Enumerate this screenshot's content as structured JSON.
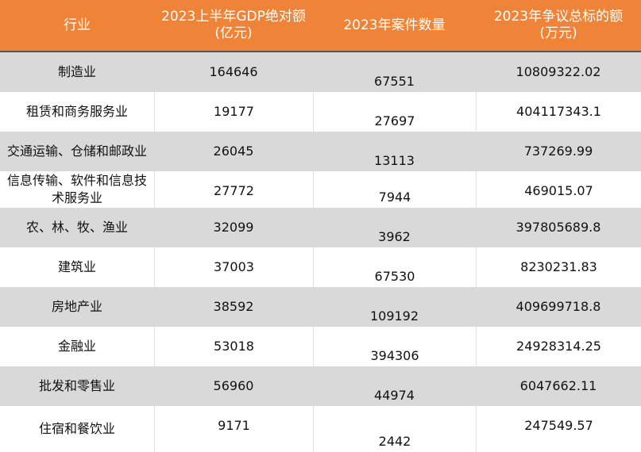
{
  "table": {
    "headers": [
      "行业",
      "2023上半年GDP绝对额\n(亿元)",
      "2023年案件数量",
      "2023年争议总标的额\n(万元)"
    ],
    "rows": [
      {
        "industry": "制造业",
        "gdp": "164646",
        "cases": "67551",
        "amount": "10809322.02"
      },
      {
        "industry": "租赁和商务服务业",
        "gdp": "19177",
        "cases": "27697",
        "amount": "404117343.1"
      },
      {
        "industry": "交通运输、仓储和邮政业",
        "gdp": "26045",
        "cases": "13113",
        "amount": "737269.99"
      },
      {
        "industry": "信息传输、软件和信息技术服务业",
        "gdp": "27772",
        "cases": "7944",
        "amount": "469015.07"
      },
      {
        "industry": "农、林、牧、渔业",
        "gdp": "32099",
        "cases": "3962",
        "amount": "397805689.8"
      },
      {
        "industry": "建筑业",
        "gdp": "37003",
        "cases": "67530",
        "amount": "8230231.83"
      },
      {
        "industry": "房地产业",
        "gdp": "38592",
        "cases": "109192",
        "amount": "409699718.8"
      },
      {
        "industry": "金融业",
        "gdp": "53018",
        "cases": "394306",
        "amount": "24928314.25"
      },
      {
        "industry": "批发和零售业",
        "gdp": "56960",
        "cases": "44974",
        "amount": "6047662.11"
      },
      {
        "industry": "住宿和餐饮业",
        "gdp": "9171",
        "cases": "2442",
        "amount": "247549.57"
      }
    ]
  }
}
